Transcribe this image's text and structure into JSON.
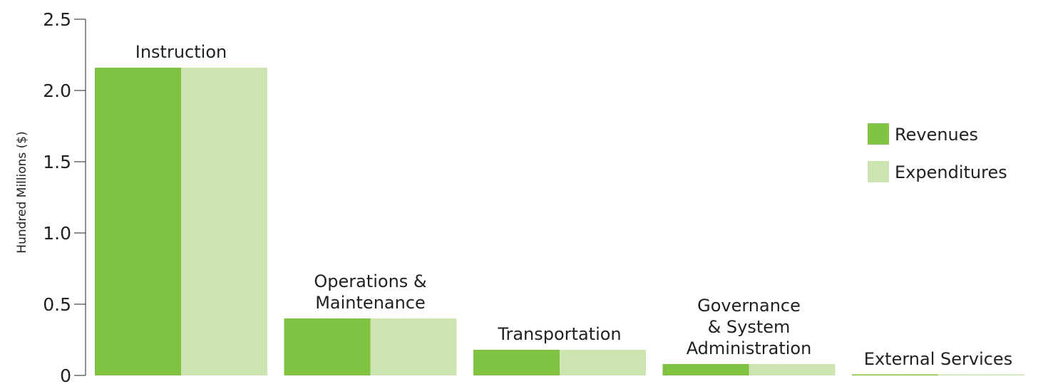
{
  "chart_data": {
    "type": "bar",
    "ylabel": "Hundred Millions ($)",
    "xlabel": "",
    "ylim": [
      0,
      2.5
    ],
    "y_ticks": [
      {
        "value": 0,
        "label": "0"
      },
      {
        "value": 0.5,
        "label": "0.5"
      },
      {
        "value": 1.0,
        "label": "1.0"
      },
      {
        "value": 1.5,
        "label": "1.5"
      },
      {
        "value": 2.0,
        "label": "2.0"
      },
      {
        "value": 2.5,
        "label": "2.5"
      }
    ],
    "categories": [
      "Instruction",
      "Operations & Maintenance",
      "Transportation",
      "Governance & System Administration",
      "External Services"
    ],
    "category_label_lines": [
      [
        "Instruction"
      ],
      [
        "Operations &",
        "Maintenance"
      ],
      [
        "Transportation"
      ],
      [
        "Governance",
        "& System",
        "Administration"
      ],
      [
        "External Services"
      ]
    ],
    "series": [
      {
        "name": "Revenues",
        "color": "#80c241",
        "values": [
          2.16,
          0.4,
          0.18,
          0.08,
          0.005
        ]
      },
      {
        "name": "Expenditures",
        "color": "#cbe4b0",
        "values": [
          2.16,
          0.4,
          0.18,
          0.08,
          0.005
        ]
      }
    ],
    "legend_position": "right",
    "grid": false
  }
}
